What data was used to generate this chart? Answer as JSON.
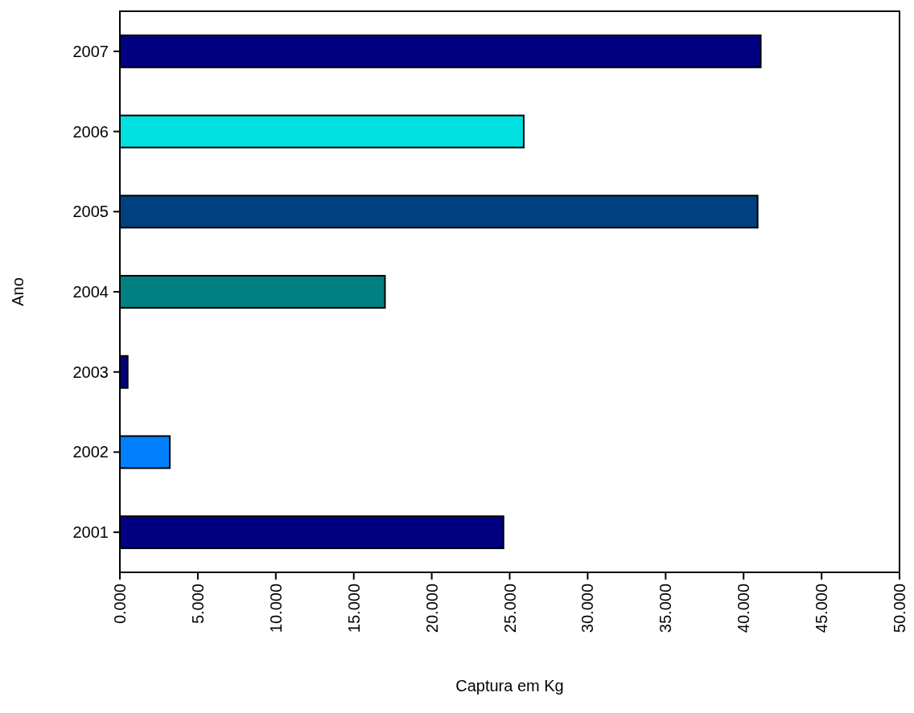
{
  "chart_data": {
    "type": "bar",
    "orientation": "horizontal",
    "xlabel": "Captura em Kg",
    "ylabel": "Ano",
    "categories": [
      "2007",
      "2006",
      "2005",
      "2004",
      "2003",
      "2002",
      "2001"
    ],
    "values": [
      41.1,
      25.9,
      40.9,
      17.0,
      0.5,
      3.2,
      24.6
    ],
    "colors": [
      "#000080",
      "#00e0e0",
      "#004080",
      "#008080",
      "#000080",
      "#0080ff",
      "#000080"
    ],
    "xlim": [
      0,
      50
    ],
    "xticks": [
      {
        "value": 0,
        "label": "0.000"
      },
      {
        "value": 5,
        "label": "5.000"
      },
      {
        "value": 10,
        "label": "10.000"
      },
      {
        "value": 15,
        "label": "15.000"
      },
      {
        "value": 20,
        "label": "20.000"
      },
      {
        "value": 25,
        "label": "25.000"
      },
      {
        "value": 30,
        "label": "30.000"
      },
      {
        "value": 35,
        "label": "35.000"
      },
      {
        "value": 40,
        "label": "40.000"
      },
      {
        "value": 45,
        "label": "45.000"
      },
      {
        "value": 50,
        "label": "50.000"
      }
    ],
    "grid": false
  }
}
